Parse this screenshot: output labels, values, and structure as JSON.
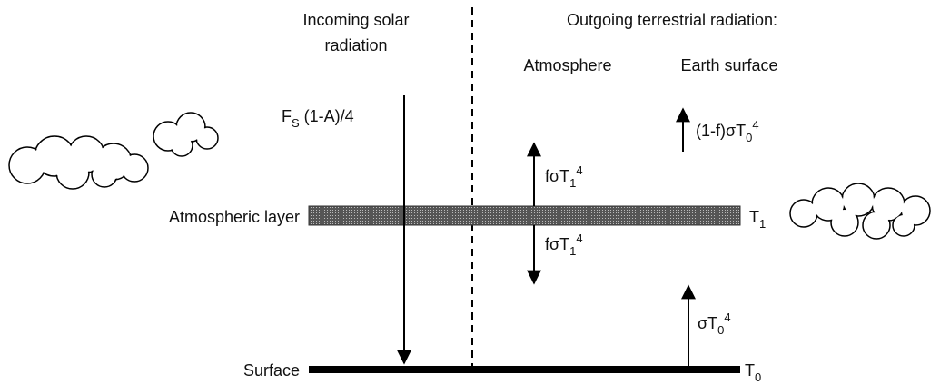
{
  "headers": {
    "incoming": [
      "Incoming solar",
      "radiation"
    ],
    "outgoing": "Outgoing terrestrial radiation:",
    "atmosphere": "Atmosphere",
    "earth_surface": "Earth surface"
  },
  "labels": {
    "solar_flux": [
      "F",
      "S",
      " (1-A)/4"
    ],
    "escape": [
      "(1-f)σT",
      "0",
      "4"
    ],
    "atm_up": [
      "fσT",
      "1",
      "4"
    ],
    "atm_down": [
      "fσT",
      "1",
      "4"
    ],
    "surface_emission": [
      "σT",
      "0",
      "4"
    ],
    "layer": "Atmospheric layer",
    "surface": "Surface",
    "t1": [
      "T",
      "1"
    ],
    "t0": [
      "T",
      "0"
    ]
  }
}
